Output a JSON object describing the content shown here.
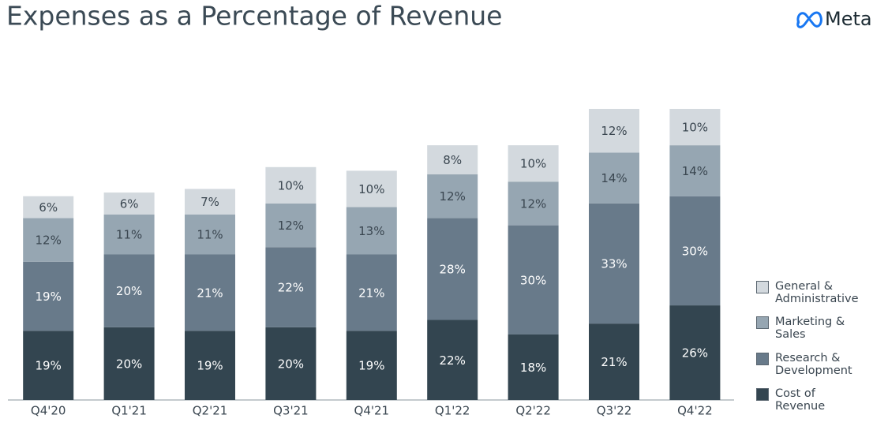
{
  "logo": "Meta",
  "chart_data": {
    "type": "stacked-bar",
    "title": "Expenses as a Percentage of Revenue",
    "categories": [
      "Q4'20",
      "Q1'21",
      "Q2'21",
      "Q3'21",
      "Q4'21",
      "Q1'22",
      "Q2'22",
      "Q3'22",
      "Q4'22"
    ],
    "series": [
      {
        "name": "Cost of Revenue",
        "color": "#334550",
        "values": [
          19,
          20,
          19,
          20,
          19,
          22,
          18,
          21,
          26
        ],
        "value_labels": [
          "19%",
          "20%",
          "19%",
          "20%",
          "19%",
          "22%",
          "18%",
          "21%",
          "26%"
        ]
      },
      {
        "name": "Research & Development",
        "color": "#687a8a",
        "values": [
          19,
          20,
          21,
          22,
          21,
          28,
          30,
          33,
          30
        ],
        "value_labels": [
          "19%",
          "20%",
          "21%",
          "22%",
          "21%",
          "28%",
          "30%",
          "33%",
          "30%"
        ]
      },
      {
        "name": "Marketing & Sales",
        "color": "#96a6b2",
        "values": [
          12,
          11,
          11,
          12,
          13,
          12,
          12,
          14,
          14
        ],
        "value_labels": [
          "12%",
          "11%",
          "11%",
          "12%",
          "13%",
          "12%",
          "12%",
          "14%",
          "14%"
        ]
      },
      {
        "name": "General & Administrative",
        "color": "#d3d9de",
        "values": [
          6,
          6,
          7,
          10,
          10,
          8,
          10,
          12,
          10
        ],
        "value_labels": [
          "6%",
          "6%",
          "7%",
          "10%",
          "10%",
          "8%",
          "10%",
          "12%",
          "10%"
        ]
      }
    ]
  }
}
